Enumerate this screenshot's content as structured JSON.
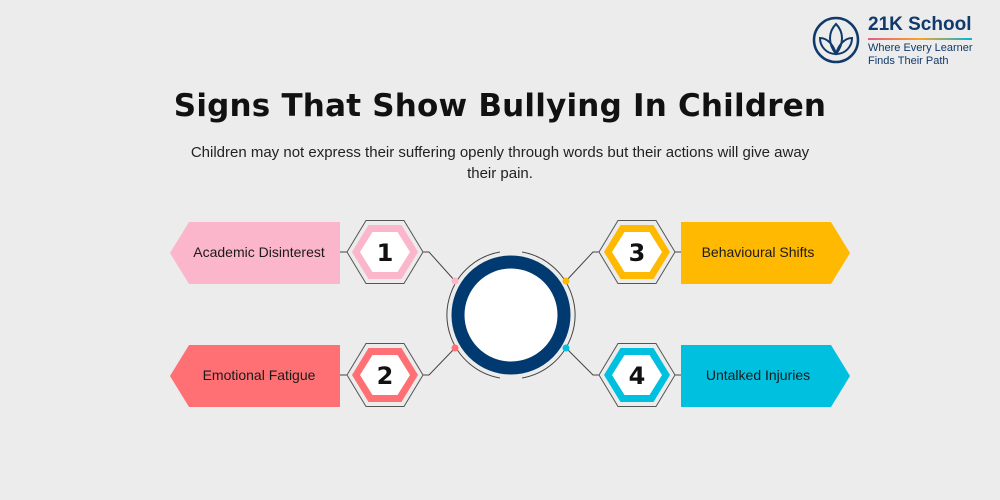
{
  "brand": {
    "name": "21K School",
    "tagline_line1": "Where Every Learner",
    "tagline_line2": "Finds Their Path",
    "color": "#0f3a6b"
  },
  "header": {
    "title": "Signs That Show Bullying In Children",
    "subtitle": "Children may not express their suffering openly through words but their actions will give away their pain."
  },
  "center": {
    "ring_color": "#003a70"
  },
  "signs": [
    {
      "number": "1",
      "label": "Academic Disinterest",
      "color": "#fbb6cc",
      "side": "left"
    },
    {
      "number": "2",
      "label": "Emotional Fatigue",
      "color": "#ff7074",
      "side": "left"
    },
    {
      "number": "3",
      "label": "Behavioural Shifts",
      "color": "#ffb900",
      "side": "right"
    },
    {
      "number": "4",
      "label": "Untalked Injuries",
      "color": "#00c0e0",
      "side": "right"
    }
  ]
}
